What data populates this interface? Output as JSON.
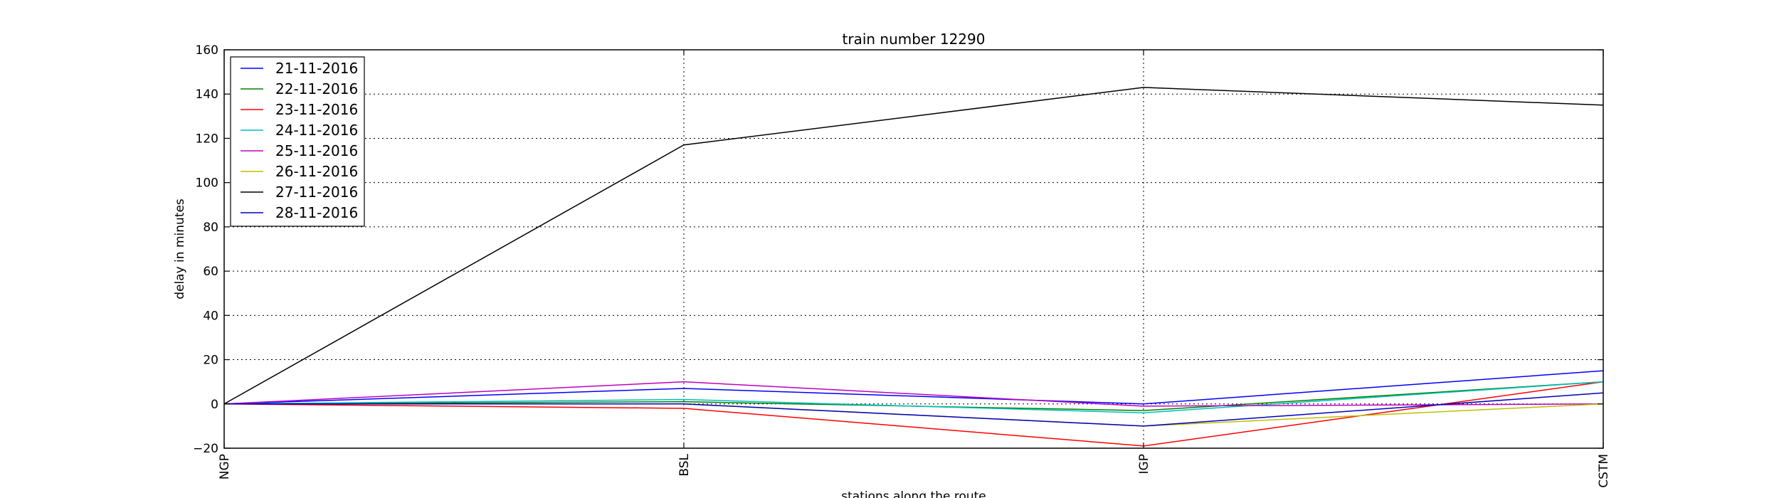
{
  "chart_data": {
    "type": "line",
    "title": "train number 12290",
    "xlabel": "stations along the route",
    "ylabel": "delay in minutes",
    "categories": [
      "NGP",
      "BSL",
      "IGP",
      "CSTM"
    ],
    "ylim": [
      -20,
      160
    ],
    "yticks": [
      -20,
      0,
      20,
      40,
      60,
      80,
      100,
      120,
      140,
      160
    ],
    "ytick_labels": [
      "−20",
      "0",
      "20",
      "40",
      "60",
      "80",
      "100",
      "120",
      "140",
      "160"
    ],
    "grid": true,
    "legend_position": "top-left",
    "series": [
      {
        "name": "21-11-2016",
        "color": "#0000ff",
        "values": [
          0,
          7,
          0,
          15
        ]
      },
      {
        "name": "22-11-2016",
        "color": "#008000",
        "values": [
          0,
          1,
          -3,
          10
        ]
      },
      {
        "name": "23-11-2016",
        "color": "#ff0000",
        "values": [
          0,
          -2,
          -19,
          10
        ]
      },
      {
        "name": "24-11-2016",
        "color": "#00bfbf",
        "values": [
          0,
          2,
          -4,
          10
        ]
      },
      {
        "name": "25-11-2016",
        "color": "#bf00bf",
        "values": [
          0,
          10,
          -1,
          0
        ]
      },
      {
        "name": "26-11-2016",
        "color": "#bfbf00",
        "values": [
          0,
          0,
          -10,
          0
        ]
      },
      {
        "name": "27-11-2016",
        "color": "#000000",
        "values": [
          0,
          117,
          143,
          135
        ]
      },
      {
        "name": "28-11-2016",
        "color": "#0000bf",
        "values": [
          0,
          0,
          -10,
          5
        ]
      }
    ]
  }
}
